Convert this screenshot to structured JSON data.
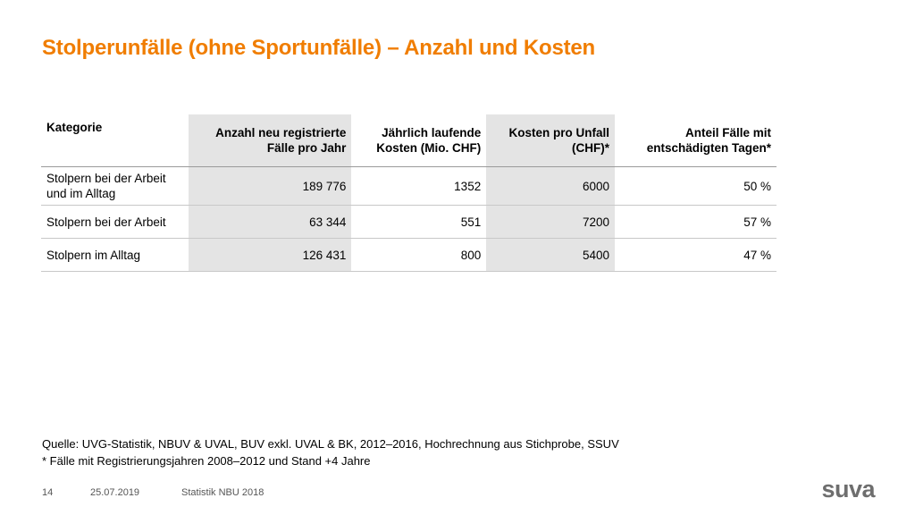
{
  "title": "Stolperunfälle (ohne Sportunfälle) – Anzahl und Kosten",
  "table": {
    "headers": [
      "Kategorie",
      "Anzahl neu registrierte Fälle pro Jahr",
      "Jährlich laufende Kosten (Mio. CHF)",
      "Kosten pro Unfall (CHF)*",
      "Anteil Fälle mit entschädigten Tagen*"
    ],
    "rows": [
      [
        "Stolpern bei der Arbeit und im Alltag",
        "189 776",
        "1352",
        "6000",
        "50 %"
      ],
      [
        "Stolpern bei der Arbeit",
        "63 344",
        "551",
        "7200",
        "57 %"
      ],
      [
        "Stolpern im Alltag",
        "126 431",
        "800",
        "5400",
        "47 %"
      ]
    ]
  },
  "notes": {
    "source": "Quelle: UVG-Statistik, NBUV & UVAL, BUV exkl. UVAL & BK, 2012–2016, Hochrechnung aus Stichprobe, SSUV",
    "footnote": "* Fälle mit Registrierungsjahren 2008–2012 und Stand +4 Jahre"
  },
  "footer": {
    "page": "14",
    "date": "25.07.2019",
    "doc": "Statistik NBU 2018"
  },
  "logo": "suva",
  "colors": {
    "title": "#f07d00",
    "shade": "#e4e4e4",
    "logo": "#6e6e6e"
  }
}
